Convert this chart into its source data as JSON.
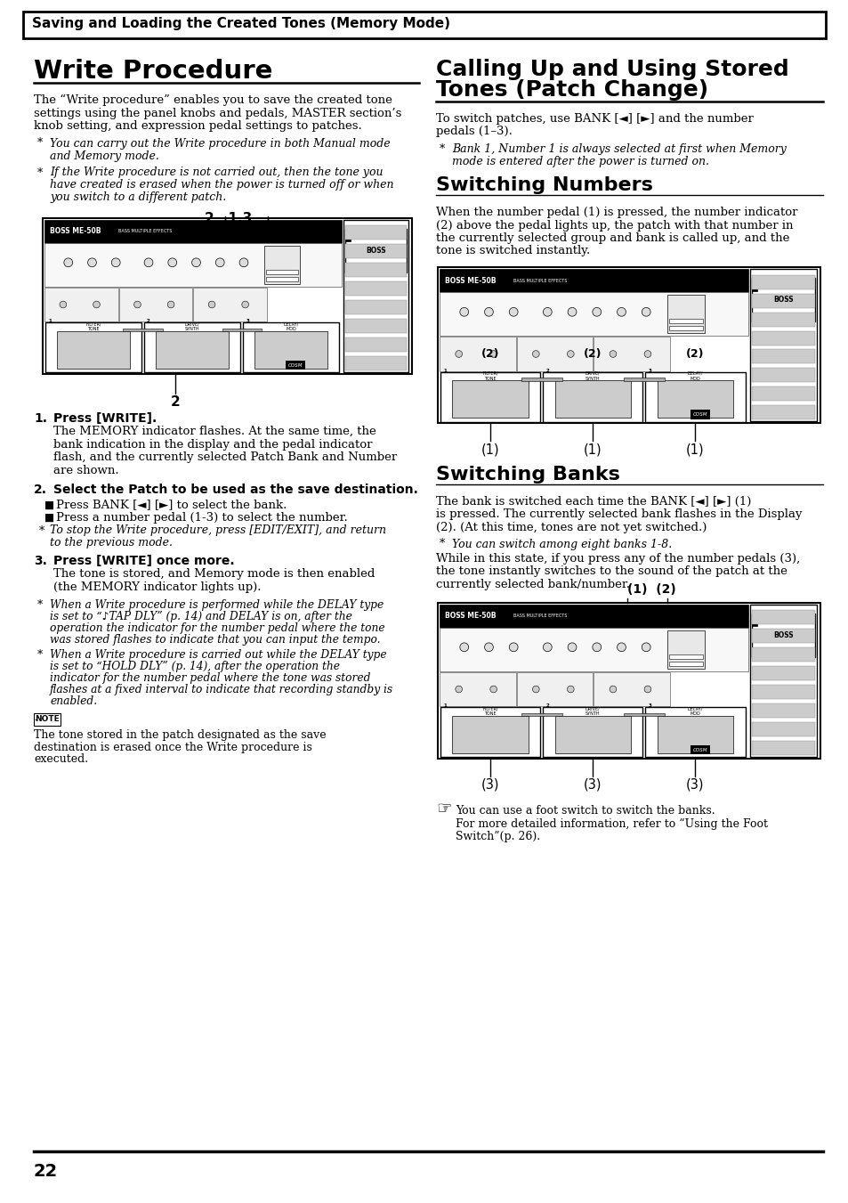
{
  "page_background": "#ffffff",
  "page_width": 9.54,
  "page_height": 13.51,
  "dpi": 100,
  "header_text": "Saving and Loading the Created Tones (Memory Mode)",
  "left_col_title": "Write Procedure",
  "right_col_title_line1": "Calling Up and Using Stored",
  "right_col_title_line2": "Tones (Patch Change)",
  "page_number": "22",
  "lc_intro_lines": [
    "The “Write procedure” enables you to save the created tone",
    "settings using the panel knobs and pedals, MASTER section’s",
    "knob setting, and expression pedal settings to patches."
  ],
  "lc_bullet1_lines": [
    "You can carry out the Write procedure in both Manual mode",
    "and Memory mode."
  ],
  "lc_bullet2_lines": [
    "If the Write procedure is not carried out, then the tone you",
    "have created is erased when the power is turned off or when",
    "you switch to a different patch."
  ],
  "lc_step1_body_lines": [
    "The MEMORY indicator flashes. At the same time, the",
    "bank indication in the display and the pedal indicator",
    "flash, and the currently selected Patch Bank and Number",
    "are shown."
  ],
  "lc_step2_note_lines": [
    "To stop the Write procedure, press [EDIT/EXIT], and return",
    "to the previous mode."
  ],
  "lc_step3_body_lines": [
    "The tone is stored, and Memory mode is then enabled",
    "(the MEMORY indicator lights up)."
  ],
  "lc_italic1_lines": [
    "When a Write procedure is performed while the DELAY type",
    "is set to “♪TAP DLY” (p. 14) and DELAY is on, after the",
    "operation the indicator for the number pedal where the tone",
    "was stored flashes to indicate that you can input the tempo."
  ],
  "lc_italic2_lines": [
    "When a Write procedure is carried out while the DELAY type",
    "is set to “HOLD DLY” (p. 14), after the operation the",
    "indicator for the number pedal where the tone was stored",
    "flashes at a fixed interval to indicate that recording standby is",
    "enabled."
  ],
  "lc_note_lines": [
    "The tone stored in the patch designated as the save",
    "destination is erased once the Write procedure is",
    "executed."
  ],
  "rc_intro_lines": [
    "To switch patches, use BANK [◄] [►] and the number",
    "pedals (1–3)."
  ],
  "rc_bullet_lines": [
    "Bank 1, Number 1 is always selected at first when Memory",
    "mode is entered after the power is turned on."
  ],
  "rc_sn_body_lines": [
    "When the number pedal (1) is pressed, the number indicator",
    "(2) above the pedal lights up, the patch with that number in",
    "the currently selected group and bank is called up, and the",
    "tone is switched instantly."
  ],
  "rc_sb_body_lines": [
    "The bank is switched each time the BANK [◄] [►] (1)",
    "is pressed. The currently selected bank flashes in the Display",
    "(2). (At this time, tones are not yet switched.)"
  ],
  "rc_sb_note_lines": [
    "While in this state, if you press any of the number pedals (3),",
    "the tone instantly switches to the sound of the patch at the",
    "currently selected bank/number."
  ],
  "rc_footer_lines": [
    "You can use a foot switch to switch the banks.",
    "For more detailed information, refer to “Using the Foot",
    "Switch”(p. 26)."
  ]
}
